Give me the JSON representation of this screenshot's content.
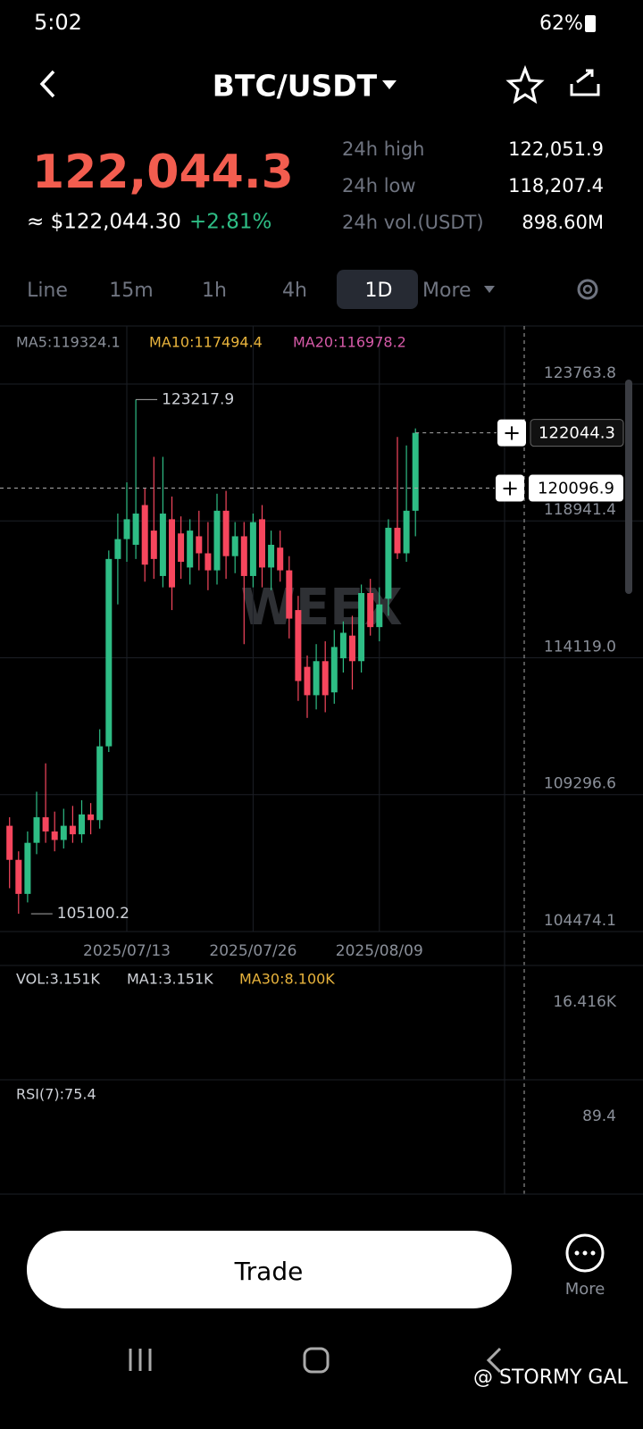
{
  "status_bar": {
    "time": "5:02",
    "battery": "62%"
  },
  "header": {
    "pair": "BTC/USDT"
  },
  "price": {
    "last": "122,044.3",
    "fiat": "≈ $122,044.30",
    "change": "+2.81%"
  },
  "stats": [
    {
      "label": "24h high",
      "value": "122,051.9"
    },
    {
      "label": "24h low",
      "value": "118,207.4"
    },
    {
      "label": "24h vol.(USDT)",
      "value": "898.60M"
    }
  ],
  "tabs": [
    "Line",
    "15m",
    "1h",
    "4h",
    "1D",
    "More"
  ],
  "indicators": {
    "ma5": "MA5:119324.1",
    "ma10": "MA10:117494.4",
    "ma20": "MA20:116978.2"
  },
  "watermark": "WEEX",
  "volume_panel": {
    "vol": "VOL:3.151K",
    "ma1": "MA1:3.151K",
    "ma30": "MA30:8.100K",
    "max": "16.416K"
  },
  "rsi_panel": {
    "label": "RSI(7):75.4",
    "max": "89.4"
  },
  "actions": {
    "trade": "Trade",
    "more": "More"
  },
  "credit": "@ STORMY GAL",
  "chart_data": {
    "type": "candlestick",
    "up_color": "#2ebd85",
    "down_color": "#f6465d",
    "ylim": [
      104474.1,
      125809
    ],
    "yticks": [
      123763.8,
      118941.4,
      {
        "value": 114119.0,
        "label": "114119.0"
      },
      109296.6,
      104474.1
    ],
    "xticks": [
      {
        "value": 13,
        "label": "2025/07/13"
      },
      {
        "value": 27,
        "label": "2025/07/26"
      },
      {
        "value": 41,
        "label": "2025/08/09"
      }
    ],
    "grid": true,
    "high_label": 123217.9,
    "low_label": 105100.2,
    "last_price": 122044.3,
    "crosshair_price": 120096.9,
    "ohlc": [
      [
        108200,
        108500,
        106000,
        107000
      ],
      [
        107000,
        107300,
        105100.2,
        105800
      ],
      [
        105800,
        108000,
        105500,
        107600
      ],
      [
        107600,
        109400,
        107200,
        108500
      ],
      [
        108500,
        110400,
        107600,
        108000
      ],
      [
        108000,
        108700,
        107300,
        107700
      ],
      [
        107700,
        108800,
        107400,
        108200
      ],
      [
        108200,
        108900,
        107600,
        107900
      ],
      [
        107900,
        109100,
        107600,
        108600
      ],
      [
        108600,
        109000,
        107900,
        108400
      ],
      [
        108400,
        111600,
        108100,
        111000
      ],
      [
        111000,
        117900,
        110800,
        117600
      ],
      [
        117600,
        119200,
        116000,
        118300
      ],
      [
        118300,
        120300,
        117500,
        119000
      ],
      [
        118100,
        123217.9,
        117600,
        119200
      ],
      [
        119500,
        120100,
        116800,
        117400
      ],
      [
        118600,
        121200,
        116900,
        117600
      ],
      [
        117000,
        121200,
        116600,
        119200
      ],
      [
        119000,
        119800,
        115800,
        116600
      ],
      [
        118500,
        119100,
        116900,
        117500
      ],
      [
        117300,
        119000,
        116700,
        118600
      ],
      [
        118400,
        119300,
        117200,
        117800
      ],
      [
        117800,
        118900,
        116500,
        117200
      ],
      [
        117200,
        119900,
        116700,
        119300
      ],
      [
        119300,
        120000,
        116900,
        117700
      ],
      [
        117700,
        118900,
        117100,
        118400
      ],
      [
        118400,
        118900,
        114600,
        117000
      ],
      [
        117000,
        119200,
        116600,
        118900
      ],
      [
        119000,
        119500,
        116600,
        117300
      ],
      [
        117300,
        118600,
        116500,
        118100
      ],
      [
        118000,
        118600,
        116800,
        117200
      ],
      [
        117200,
        117700,
        114800,
        115500
      ],
      [
        115800,
        116300,
        112600,
        113300
      ],
      [
        113800,
        114200,
        112000,
        112800
      ],
      [
        112800,
        114600,
        112300,
        114000
      ],
      [
        114000,
        114700,
        112200,
        112800
      ],
      [
        112900,
        115100,
        112500,
        114500
      ],
      [
        114100,
        115400,
        113600,
        115000
      ],
      [
        114900,
        115600,
        113000,
        114000
      ],
      [
        114000,
        116700,
        113600,
        116400
      ],
      [
        116400,
        116900,
        114900,
        115200
      ],
      [
        115200,
        116600,
        114700,
        116000
      ],
      [
        116200,
        119000,
        115600,
        118700
      ],
      [
        118700,
        121900,
        117600,
        117800
      ],
      [
        117800,
        121600,
        117500,
        119300
      ],
      [
        119300,
        122200,
        118400,
        122044.3
      ]
    ]
  }
}
